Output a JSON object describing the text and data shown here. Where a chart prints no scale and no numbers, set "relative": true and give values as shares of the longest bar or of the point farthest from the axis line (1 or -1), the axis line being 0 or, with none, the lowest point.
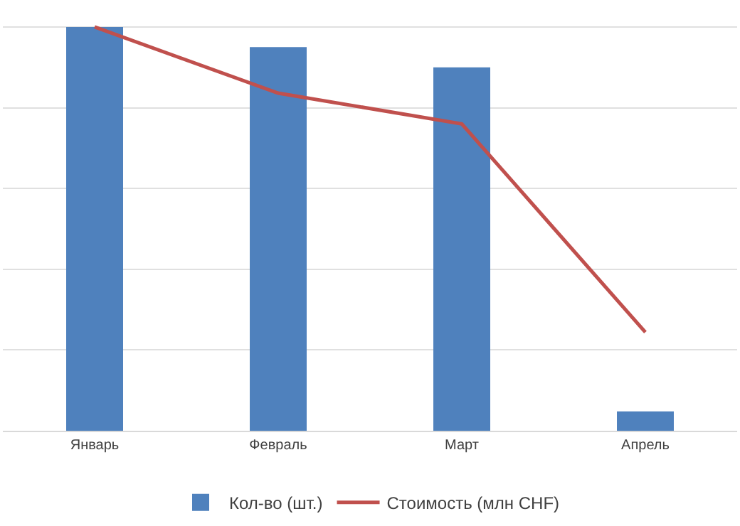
{
  "chart_data": {
    "type": "bar",
    "categories": [
      "Январь",
      "Февраль",
      "Март",
      "Апрель"
    ],
    "relative": true,
    "grid": "y",
    "legend": "bottom",
    "series": [
      {
        "name": "Кол-во (шт.)",
        "color": "#4f81bd",
        "values": [
          1,
          0.95,
          0.9,
          0.048
        ]
      },
      {
        "name": "Стоимость (млн CHF)",
        "type": "line",
        "color": "#c0504d",
        "values": [
          1,
          0.836,
          0.76,
          0.244
        ],
        "marker": "none"
      }
    ]
  }
}
